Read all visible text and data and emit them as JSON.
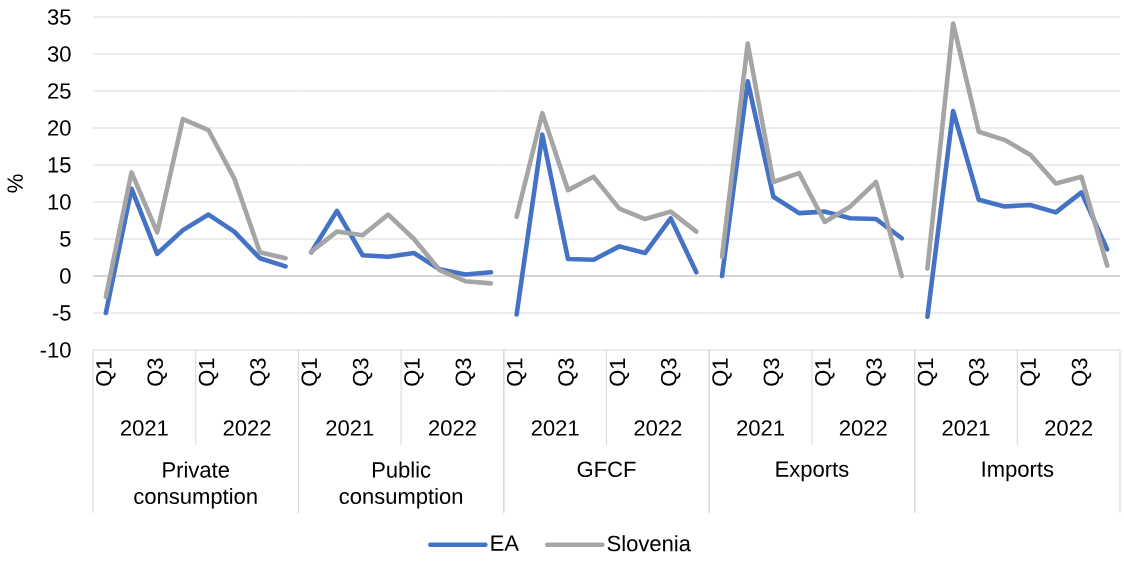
{
  "chart_data": [
    {
      "type": "line",
      "ylabel": "%",
      "xlabel": "Private consumption",
      "categories": [
        "Q1",
        null,
        "Q3",
        null,
        "Q1",
        null,
        "Q3",
        null
      ],
      "annotations": [
        "2021",
        "2022"
      ],
      "series": [
        {
          "color": "#4472c4",
          "values": [
            -5.0,
            11.8,
            3.0,
            6.2,
            8.3,
            6.0,
            2.4,
            1.3
          ]
        },
        {
          "color": "#a5a5a5",
          "values": [
            -2.8,
            14.0,
            5.9,
            21.2,
            19.7,
            13.2,
            3.2,
            2.4
          ]
        }
      ],
      "ylim": [
        -10,
        35
      ],
      "yticks": [
        -10,
        -5,
        0,
        5,
        10,
        15,
        20,
        25,
        30,
        35
      ],
      "grid": "y"
    },
    {
      "type": "line",
      "xlabel": "Public consumption",
      "categories": [
        "Q1",
        null,
        "Q3",
        null,
        "Q1",
        null,
        "Q3",
        null
      ],
      "annotations": [
        "2021",
        "2022"
      ],
      "series": [
        {
          "color": "#4472c4",
          "values": [
            3.2,
            8.8,
            2.8,
            2.6,
            3.1,
            0.9,
            0.2,
            0.5
          ]
        },
        {
          "color": "#a5a5a5",
          "values": [
            3.3,
            6.0,
            5.5,
            8.3,
            5.0,
            0.8,
            -0.7,
            -1.0
          ]
        }
      ],
      "ylim": [
        -10,
        35
      ],
      "yticks": [
        -10,
        -5,
        0,
        5,
        10,
        15,
        20,
        25,
        30,
        35
      ],
      "grid": "y",
      "tick_labels": "x"
    },
    {
      "type": "line",
      "xlabel": "GFCF",
      "categories": [
        "Q1",
        null,
        "Q3",
        null,
        "Q1",
        null,
        "Q3",
        null
      ],
      "annotations": [
        "2021",
        "2022"
      ],
      "series": [
        {
          "name": "EA",
          "color": "#4472c4",
          "values": [
            -5.2,
            19.1,
            2.3,
            2.2,
            4.0,
            3.1,
            7.8,
            0.5
          ]
        },
        {
          "name": "Slovenia",
          "color": "#a5a5a5",
          "values": [
            8.0,
            22.0,
            11.6,
            13.4,
            9.1,
            7.7,
            8.7,
            6.0
          ]
        }
      ],
      "ylim": [
        -10,
        35
      ],
      "yticks": [
        -10,
        -5,
        0,
        5,
        10,
        15,
        20,
        25,
        30,
        35
      ],
      "grid": "y",
      "tick_labels": "x",
      "legend": "bottom"
    },
    {
      "type": "line",
      "xlabel": "Exports",
      "categories": [
        "Q1",
        null,
        "Q3",
        null,
        "Q1",
        null,
        "Q3",
        null
      ],
      "annotations": [
        "2021",
        "2022"
      ],
      "series": [
        {
          "color": "#4472c4",
          "values": [
            0.0,
            26.3,
            10.7,
            8.5,
            8.7,
            7.8,
            7.7,
            5.1
          ]
        },
        {
          "color": "#a5a5a5",
          "values": [
            2.6,
            31.4,
            12.7,
            13.9,
            7.3,
            9.4,
            12.7,
            0.0
          ]
        }
      ],
      "ylim": [
        -10,
        35
      ],
      "yticks": [
        -10,
        -5,
        0,
        5,
        10,
        15,
        20,
        25,
        30,
        35
      ],
      "grid": "y",
      "tick_labels": "x"
    },
    {
      "type": "line",
      "xlabel": "Imports",
      "categories": [
        "Q1",
        null,
        "Q3",
        null,
        "Q1",
        null,
        "Q3",
        null
      ],
      "annotations": [
        "2021",
        "2022"
      ],
      "series": [
        {
          "color": "#4472c4",
          "values": [
            -5.5,
            22.3,
            10.3,
            9.4,
            9.6,
            8.6,
            11.3,
            3.6
          ]
        },
        {
          "color": "#a5a5a5",
          "values": [
            1.0,
            34.1,
            19.5,
            18.4,
            16.4,
            12.5,
            13.4,
            1.4
          ]
        }
      ],
      "ylim": [
        -10,
        35
      ],
      "yticks": [
        -10,
        -5,
        0,
        5,
        10,
        15,
        20,
        25,
        30,
        35
      ],
      "grid": "y",
      "tick_labels": "x"
    }
  ]
}
